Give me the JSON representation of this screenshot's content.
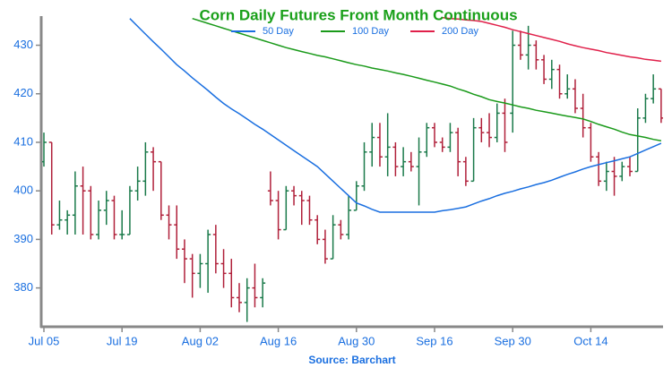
{
  "chart_data": {
    "type": "ohlc",
    "title": "Corn Daily Futures Front Month Continuous",
    "source": "Source: Barchart",
    "categories": [
      "Jul 05",
      null,
      null,
      null,
      null,
      null,
      null,
      null,
      null,
      null,
      "Jul 19",
      null,
      null,
      null,
      null,
      null,
      null,
      null,
      null,
      null,
      "Aug 02",
      null,
      null,
      null,
      null,
      null,
      null,
      null,
      null,
      null,
      "Aug 16",
      null,
      null,
      null,
      null,
      null,
      null,
      null,
      null,
      null,
      "Aug 30",
      null,
      null,
      null,
      null,
      null,
      null,
      null,
      null,
      null,
      "Sep 16",
      null,
      null,
      null,
      null,
      null,
      null,
      null,
      null,
      null,
      "Sep 30",
      null,
      null,
      null,
      null,
      null,
      null,
      null,
      null,
      null,
      "Oct 14",
      null,
      null,
      null,
      null,
      null,
      null,
      null,
      null,
      null
    ],
    "ohlc": {
      "open": [
        406,
        410,
        393,
        394,
        395,
        401,
        400,
        391,
        396,
        398,
        391,
        391,
        400,
        402,
        408,
        406,
        395,
        393,
        388,
        386,
        383,
        385,
        391,
        385,
        383,
        378,
        377,
        380,
        378,
        400,
        398,
        392,
        400,
        399,
        398,
        394,
        390,
        386,
        393,
        391,
        396,
        401,
        408,
        411,
        407,
        409,
        405,
        406,
        405,
        408,
        413,
        410,
        409,
        412,
        406,
        402,
        413,
        412,
        411,
        416,
        416,
        430,
        428,
        430,
        427,
        423,
        425,
        420,
        421,
        417,
        413,
        407,
        402,
        404,
        403,
        405,
        404,
        415,
        419,
        421
      ],
      "high": [
        412,
        410,
        398,
        396,
        404,
        405,
        401,
        398,
        400,
        399,
        396,
        401,
        405,
        410,
        409,
        406,
        397,
        397,
        390,
        387,
        387,
        392,
        393,
        388,
        386,
        381,
        382,
        385,
        382,
        404,
        400,
        401,
        401,
        400,
        399,
        395,
        392,
        395,
        394,
        399,
        402,
        410,
        414,
        414,
        416,
        410,
        409,
        408,
        411,
        414,
        414,
        411,
        414,
        413,
        407,
        415,
        415,
        416,
        418,
        419,
        433,
        433,
        434,
        431,
        428,
        427,
        426,
        424,
        423,
        420,
        414,
        408,
        406,
        407,
        406,
        407,
        417,
        420,
        424,
        421
      ],
      "low": [
        405,
        391,
        392,
        391,
        391,
        391,
        390,
        390,
        393,
        390,
        390,
        391,
        398,
        399,
        400,
        394,
        390,
        386,
        381,
        378,
        380,
        379,
        383,
        380,
        376,
        375,
        373,
        376,
        376,
        397,
        390,
        392,
        397,
        393,
        393,
        389,
        385,
        386,
        390,
        390,
        396,
        400,
        405,
        405,
        403,
        403,
        403,
        404,
        397,
        407,
        409,
        408,
        408,
        403,
        401,
        402,
        410,
        409,
        410,
        408,
        412,
        427,
        425,
        425,
        422,
        421,
        419,
        419,
        416,
        411,
        406,
        401,
        400,
        399,
        402,
        403,
        404,
        414,
        418,
        414
      ],
      "close": [
        410,
        393,
        394,
        395,
        401,
        400,
        391,
        396,
        398,
        391,
        391,
        400,
        402,
        408,
        406,
        395,
        393,
        388,
        386,
        383,
        385,
        391,
        385,
        383,
        378,
        377,
        380,
        378,
        381,
        398,
        392,
        400,
        399,
        398,
        394,
        390,
        386,
        393,
        391,
        396,
        401,
        408,
        411,
        407,
        409,
        405,
        406,
        405,
        408,
        413,
        410,
        409,
        412,
        406,
        402,
        413,
        412,
        411,
        416,
        410,
        430,
        428,
        430,
        427,
        423,
        425,
        420,
        421,
        417,
        413,
        407,
        402,
        404,
        403,
        405,
        404,
        415,
        419,
        421,
        415
      ]
    },
    "up_color": "#1a7a4a",
    "down_color": "#b0203a",
    "series": [
      {
        "name": "50 Day",
        "color": "#1a6fe0",
        "values": [
          null,
          null,
          null,
          null,
          null,
          null,
          null,
          null,
          null,
          null,
          null,
          435.5,
          433.9,
          432.3,
          430.7,
          429.2,
          427.6,
          426,
          424.7,
          423.3,
          422,
          420.7,
          419.3,
          418,
          416.9,
          415.9,
          414.8,
          413.7,
          412.7,
          411.6,
          410.5,
          409.4,
          408.3,
          407.2,
          406.1,
          405,
          403.5,
          402,
          400.5,
          399,
          397.5,
          396.9,
          396.2,
          395.6,
          395.6,
          395.6,
          395.6,
          395.6,
          395.6,
          395.6,
          395.6,
          395.9,
          396.1,
          396.4,
          396.7,
          397.3,
          397.9,
          398.4,
          399,
          399.5,
          399.9,
          400.4,
          400.8,
          401.3,
          401.7,
          402.2,
          402.8,
          403.4,
          403.9,
          404.5,
          405,
          405.4,
          405.8,
          406.2,
          406.6,
          407,
          407.7,
          408.4,
          409.1,
          409.8
        ]
      },
      {
        "name": "100 Day",
        "color": "#1a9a1a",
        "values": [
          null,
          null,
          null,
          null,
          null,
          null,
          null,
          null,
          null,
          null,
          null,
          null,
          null,
          null,
          null,
          null,
          null,
          null,
          null,
          435.5,
          435,
          434.5,
          434,
          433.5,
          433,
          432.5,
          432,
          431.5,
          431,
          430.5,
          430,
          429.5,
          429.1,
          428.7,
          428.3,
          427.9,
          427.6,
          427.2,
          426.8,
          426.4,
          426,
          425.7,
          425.3,
          425,
          424.7,
          424.3,
          424,
          423.6,
          423.2,
          422.8,
          422.4,
          422,
          421.6,
          421,
          420.5,
          419.9,
          419.4,
          418.8,
          418.4,
          418.1,
          417.7,
          417.3,
          417,
          416.6,
          416.3,
          416,
          415.7,
          415.4,
          415.1,
          414.8,
          414.3,
          413.7,
          413.2,
          412.7,
          412.1,
          411.6,
          411.3,
          411,
          410.6,
          410.3
        ]
      },
      {
        "name": "200 Day",
        "color": "#e0204a",
        "values": [
          null,
          null,
          null,
          null,
          null,
          null,
          null,
          null,
          null,
          null,
          null,
          null,
          null,
          null,
          null,
          null,
          null,
          null,
          null,
          null,
          null,
          null,
          null,
          null,
          null,
          null,
          null,
          null,
          null,
          null,
          null,
          null,
          null,
          null,
          null,
          null,
          null,
          null,
          null,
          null,
          null,
          null,
          null,
          null,
          null,
          null,
          null,
          null,
          null,
          null,
          null,
          435.7,
          435.5,
          435.4,
          435.2,
          435.1,
          434.9,
          434.5,
          434.1,
          433.7,
          433.2,
          432.8,
          432.4,
          432,
          431.6,
          431.2,
          430.8,
          430.3,
          429.9,
          429.5,
          429.2,
          428.9,
          428.5,
          428.2,
          427.9,
          427.6,
          427.4,
          427.1,
          426.9,
          426.7
        ]
      }
    ],
    "ylim": [
      372,
      436
    ],
    "yticks": [
      380,
      390,
      400,
      410,
      420,
      430
    ],
    "title_color": "#1aa01a",
    "tick_color": "#1a6fe0"
  }
}
